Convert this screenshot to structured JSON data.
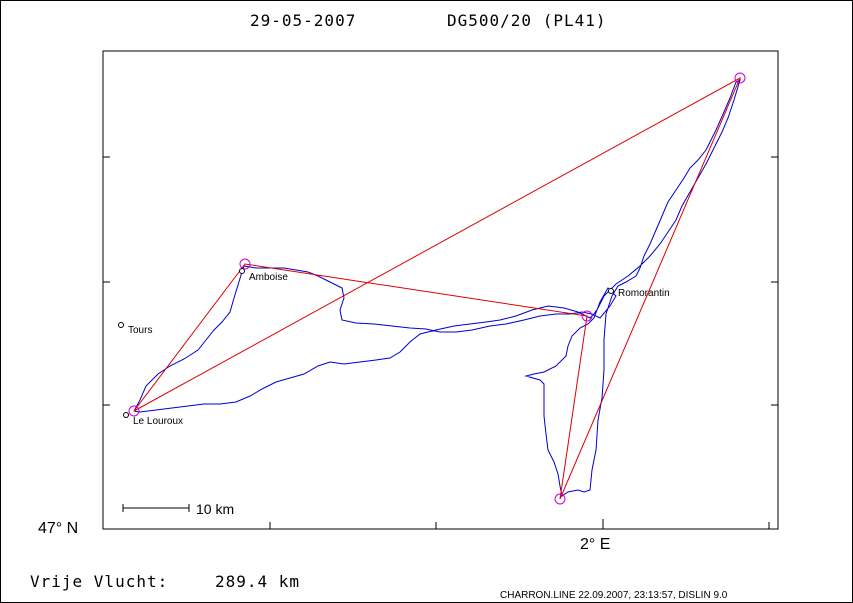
{
  "header": {
    "date": "29-05-2007",
    "glider": "DG500/20 (PL41)"
  },
  "axes": {
    "lat_label": "47° N",
    "lon_label": "2° E"
  },
  "towns": [
    {
      "name": "Amboise"
    },
    {
      "name": "Tours"
    },
    {
      "name": "Le Louroux"
    },
    {
      "name": "Romorantin"
    }
  ],
  "scale_bar": {
    "label": "10 km"
  },
  "distance": {
    "label": "Vrije Vlucht:",
    "value": "289.4 km"
  },
  "footer": {
    "credit": "CHARRON.LINE 22.09.2007, 23:13:57, DISLIN 9.0"
  },
  "colors": {
    "track": "#0000cc",
    "task": "#dd0000",
    "turnpoint": "#cc00cc",
    "frame": "#000000"
  }
}
